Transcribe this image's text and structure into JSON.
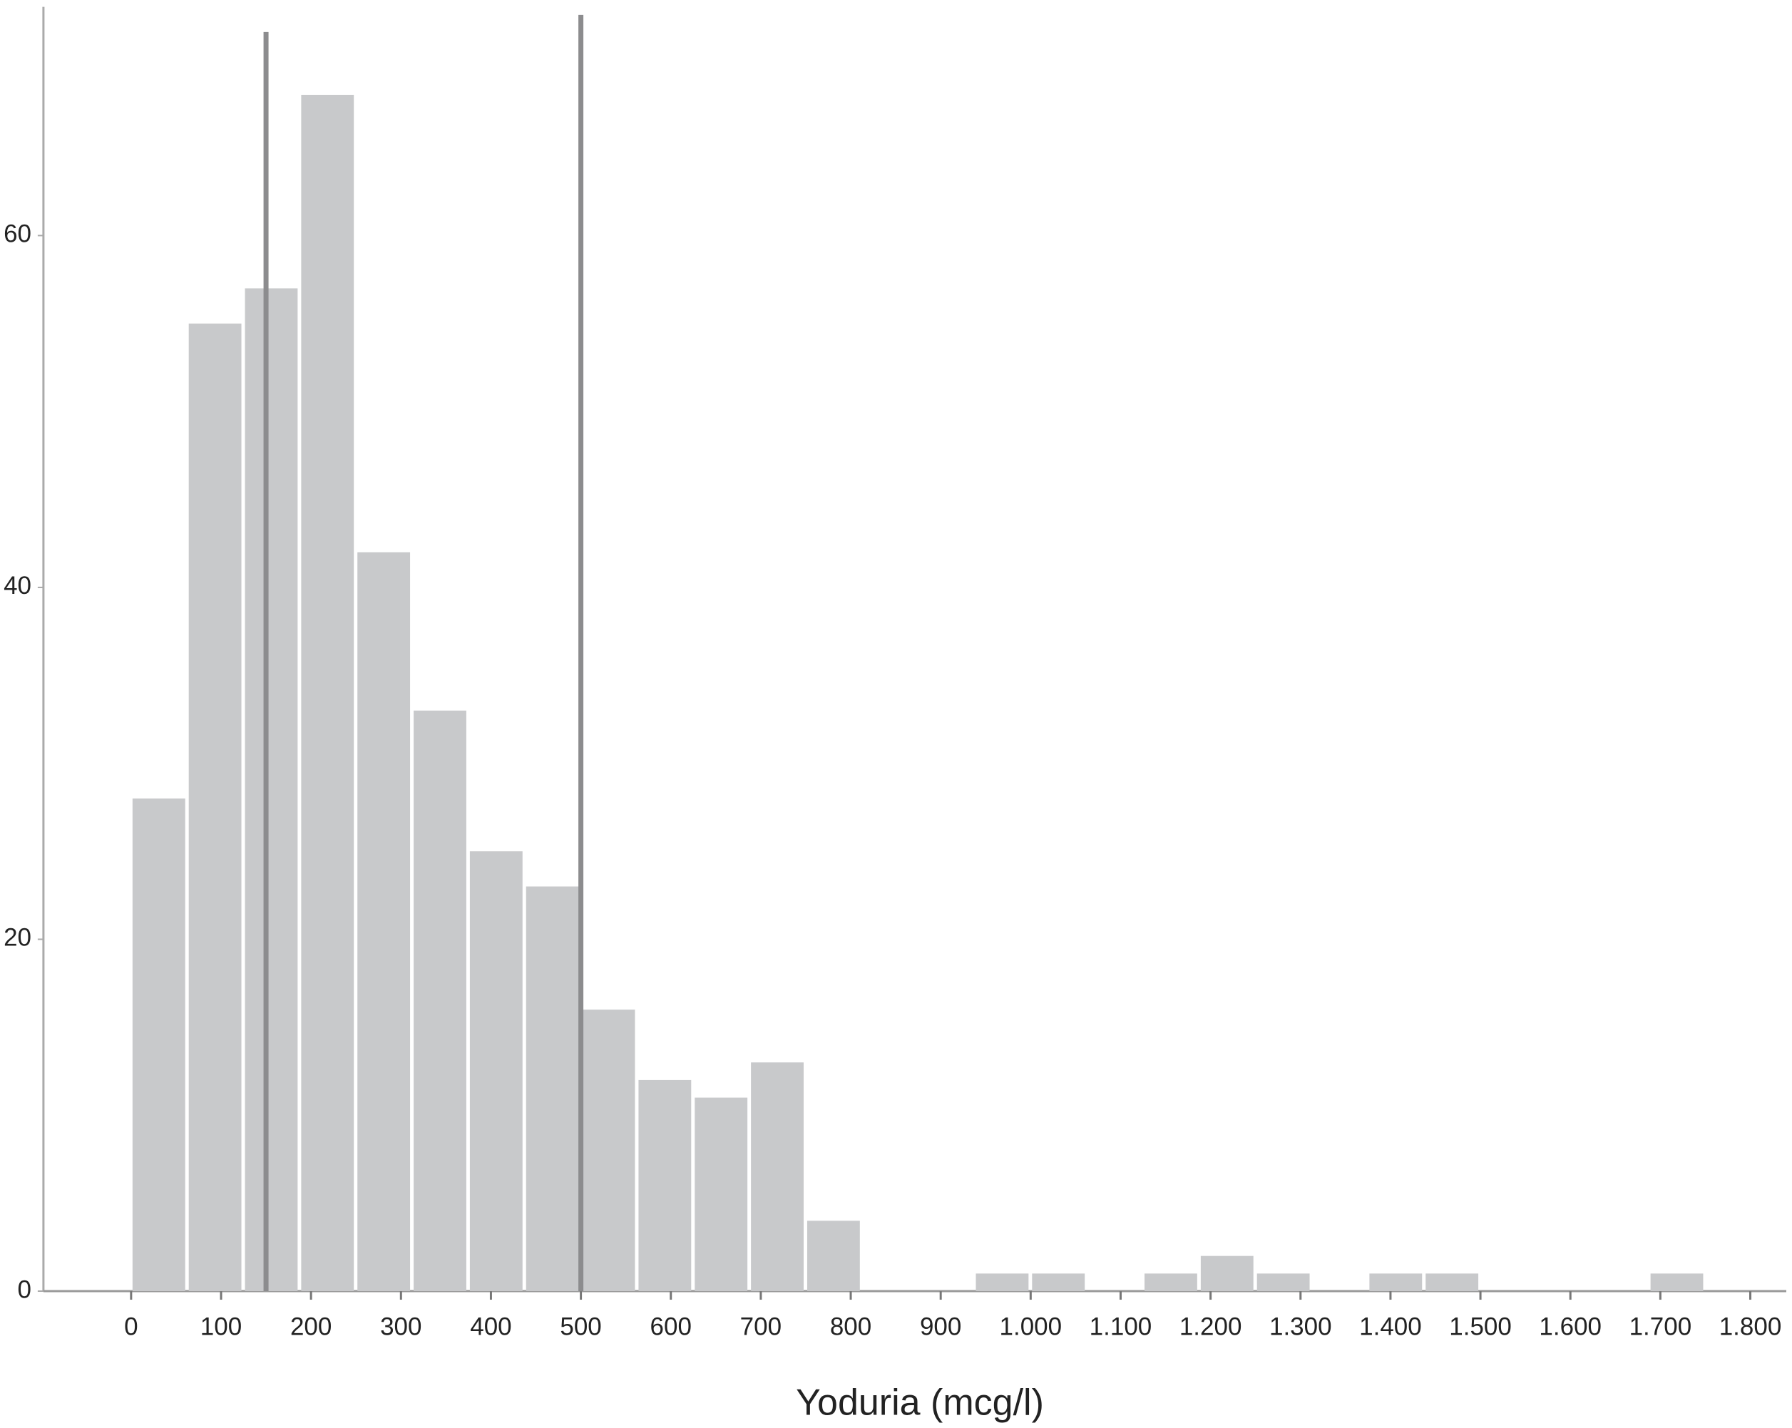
{
  "chart_data": {
    "type": "histogram",
    "x_label": "Yoduria (mcg/l)",
    "bins": [
      0,
      62.5,
      125,
      187.5,
      250,
      312.5,
      375,
      437.5,
      500,
      562.5,
      625,
      687.5,
      750,
      812.5,
      875,
      937.5,
      1000,
      1062.5,
      1125,
      1187.5,
      1250,
      1312.5,
      1375,
      1437.5,
      1500,
      1562.5,
      1625,
      1687.5,
      1750
    ],
    "values": [
      28,
      55,
      57,
      68,
      42,
      33,
      25,
      23,
      16,
      12,
      11,
      13,
      4,
      0,
      0,
      1,
      1,
      0,
      1,
      2,
      1,
      0,
      1,
      1,
      0,
      0,
      0,
      1
    ],
    "color": "#c8c9cb",
    "reference_lines": [
      150,
      500
    ],
    "reference_color": "#8c8c8e",
    "xlim": [
      -100,
      1840
    ],
    "ylim": [
      0,
      73
    ],
    "xticks": [
      0,
      100,
      200,
      300,
      400,
      500,
      600,
      700,
      800,
      900,
      {
        "value": 1000,
        "label": "1.000"
      },
      {
        "value": 1100,
        "label": "1.100"
      },
      {
        "value": 1200,
        "label": "1.200"
      },
      {
        "value": 1300,
        "label": "1.300"
      },
      {
        "value": 1400,
        "label": "1.400"
      },
      {
        "value": 1500,
        "label": "1.500"
      },
      {
        "value": 1600,
        "label": "1.600"
      },
      {
        "value": 1700,
        "label": "1.700"
      },
      {
        "value": 1800,
        "label": "1.800"
      }
    ],
    "yticks": [
      0,
      20,
      40,
      60
    ],
    "grid": false
  }
}
